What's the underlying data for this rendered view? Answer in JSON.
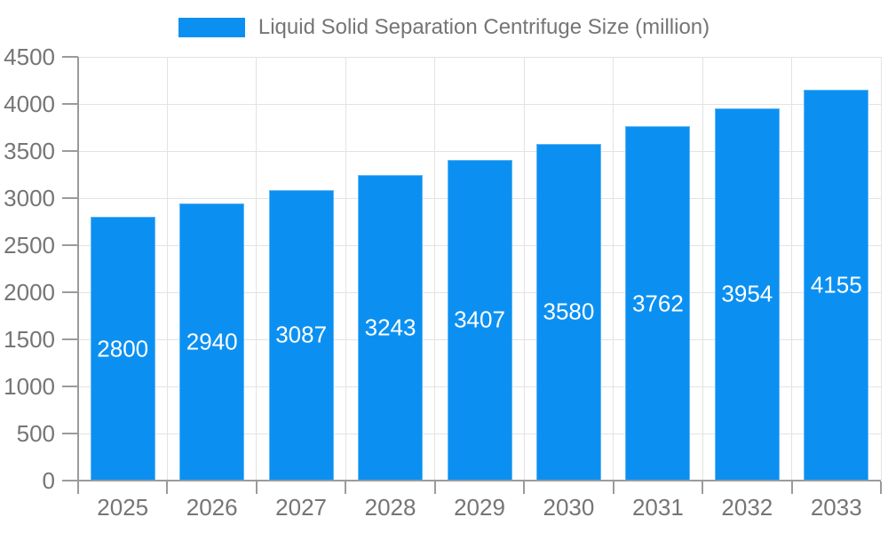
{
  "chart_data": {
    "type": "bar",
    "series_name": "Liquid Solid Separation Centrifuge Size (million)",
    "categories": [
      "2025",
      "2026",
      "2027",
      "2028",
      "2029",
      "2030",
      "2031",
      "2032",
      "2033"
    ],
    "values": [
      2800,
      2940,
      3087,
      3243,
      3407,
      3580,
      3762,
      3954,
      4155
    ],
    "xlabel": "",
    "ylabel": "",
    "ylim": [
      0,
      4500
    ],
    "yticks": [
      0,
      500,
      1000,
      1500,
      2000,
      2500,
      3000,
      3500,
      4000,
      4500
    ],
    "grid": true,
    "legend_position": "top",
    "bar_color": "#0b90f2",
    "bar_label_color": "#ffffff"
  },
  "colors": {
    "background": "#ffffff",
    "axis_text": "#757575",
    "legend_text": "#757575",
    "grid_line": "#e3e3e3",
    "axis_line": "#9b9b9b"
  }
}
